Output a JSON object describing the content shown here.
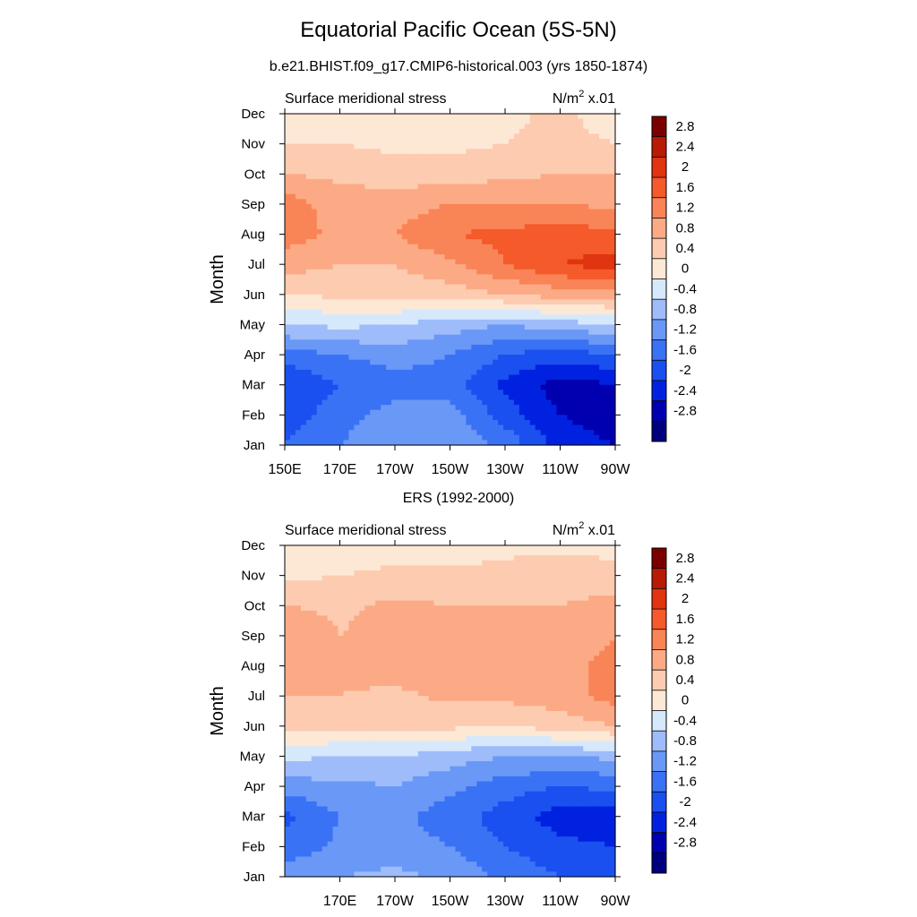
{
  "figure": {
    "title": "Equatorial Pacific Ocean (5S-5N)",
    "subtitle": "b.e21.BHIST.f09_g17.CMIP6-historical.003 (yrs 1850-1874)",
    "panel2_title": "ERS (1992-2000)"
  },
  "chart_data": [
    {
      "type": "heatmap",
      "title": "b.e21.BHIST.f09_g17.CMIP6-historical.003 (yrs 1850-1874)",
      "left_label": "Surface meridional stress",
      "right_label_base": "N/m",
      "right_label_exp": "2",
      "right_label_tail": " x.01",
      "ylabel": "Month",
      "xlabel": "",
      "x_ticks": [
        "150E",
        "170E",
        "170W",
        "150W",
        "130W",
        "110W",
        "90W"
      ],
      "y_ticks": [
        "Jan",
        "Feb",
        "Mar",
        "Apr",
        "May",
        "Jun",
        "Jul",
        "Aug",
        "Sep",
        "Oct",
        "Nov",
        "Dec"
      ],
      "x_range": [
        150,
        270
      ],
      "columns_lon": [
        150,
        170,
        190,
        210,
        230,
        250,
        270
      ],
      "rows": [
        [
          -1.6,
          -1.2,
          -0.8,
          -0.9,
          -1.3,
          -2.2,
          -2.4
        ],
        [
          -1.8,
          -1.4,
          -1.0,
          -1.0,
          -1.8,
          -2.4,
          -2.6
        ],
        [
          -2.0,
          -1.6,
          -1.4,
          -1.4,
          -2.1,
          -2.6,
          -2.4
        ],
        [
          -1.4,
          -1.2,
          -1.0,
          -1.2,
          -1.6,
          -1.8,
          -1.6
        ],
        [
          -0.4,
          -0.3,
          -0.4,
          -0.6,
          -0.8,
          -0.6,
          -0.4
        ],
        [
          0.4,
          0.5,
          0.6,
          0.6,
          0.8,
          1.0,
          1.0
        ],
        [
          1.0,
          0.8,
          0.8,
          1.1,
          1.6,
          2.0,
          2.2
        ],
        [
          1.4,
          1.1,
          1.2,
          1.6,
          1.7,
          1.8,
          1.7
        ],
        [
          1.4,
          1.0,
          1.0,
          1.2,
          1.2,
          1.2,
          1.1
        ],
        [
          0.8,
          0.7,
          0.6,
          0.6,
          0.7,
          0.8,
          0.8
        ],
        [
          0.4,
          0.4,
          0.3,
          0.3,
          0.4,
          0.5,
          0.4
        ],
        [
          0.1,
          0.2,
          0.2,
          0.2,
          0.3,
          0.5,
          0.2
        ]
      ],
      "levels": [
        -2.8,
        -2.4,
        -2,
        -1.6,
        -1.2,
        -0.8,
        -0.4,
        0,
        0.4,
        0.8,
        1.2,
        1.6,
        2,
        2.4,
        2.8
      ],
      "colorbar_labels": [
        "2.8",
        "2.4",
        "2",
        "1.6",
        "1.2",
        "0.8",
        "0.4",
        "0",
        "-0.4",
        "-0.8",
        "-1.2",
        "-1.6",
        "-2",
        "-2.4",
        "-2.8"
      ],
      "colors": [
        "#00007f",
        "#0000b0",
        "#0022e0",
        "#1a50f0",
        "#3a72f5",
        "#6a98f7",
        "#9ebcfa",
        "#d6e8fc",
        "#fde8d6",
        "#fdcbb0",
        "#fcaa86",
        "#f98457",
        "#f55a2a",
        "#e03510",
        "#b81a05",
        "#7a0000"
      ]
    },
    {
      "type": "heatmap",
      "title": "ERS (1992-2000)",
      "left_label": "Surface meridional stress",
      "right_label_base": "N/m",
      "right_label_exp": "2",
      "right_label_tail": " x.01",
      "ylabel": "Month",
      "xlabel": "",
      "x_ticks": [
        "170E",
        "170W",
        "150W",
        "130W",
        "110W",
        "90W"
      ],
      "y_ticks": [
        "Jan",
        "Feb",
        "Mar",
        "Apr",
        "May",
        "Jun",
        "Jul",
        "Aug",
        "Sep",
        "Oct",
        "Nov",
        "Dec"
      ],
      "x_range": [
        150,
        270
      ],
      "columns_lon": [
        150,
        170,
        190,
        210,
        230,
        250,
        270
      ],
      "rows": [
        [
          -0.9,
          -0.8,
          -0.7,
          -0.9,
          -1.3,
          -1.6,
          -1.8
        ],
        [
          -1.5,
          -1.1,
          -1.0,
          -1.2,
          -1.6,
          -1.9,
          -2.0
        ],
        [
          -1.7,
          -1.2,
          -1.1,
          -1.4,
          -1.8,
          -2.2,
          -2.2
        ],
        [
          -1.0,
          -0.9,
          -0.8,
          -1.1,
          -1.4,
          -1.6,
          -1.5
        ],
        [
          -0.3,
          -0.4,
          -0.4,
          -0.6,
          -0.8,
          -0.8,
          -0.7
        ],
        [
          0.6,
          0.5,
          0.5,
          0.5,
          0.4,
          0.6,
          0.8
        ],
        [
          0.8,
          0.8,
          0.7,
          0.9,
          0.9,
          1.0,
          1.4
        ],
        [
          0.9,
          0.9,
          1.0,
          1.0,
          1.0,
          1.1,
          1.3
        ],
        [
          1.2,
          0.8,
          1.0,
          1.0,
          1.0,
          1.0,
          1.2
        ],
        [
          0.8,
          0.7,
          0.9,
          0.8,
          0.8,
          0.8,
          0.9
        ],
        [
          0.3,
          0.4,
          0.5,
          0.5,
          0.5,
          0.7,
          0.6
        ],
        [
          0.1,
          0.1,
          0.2,
          0.2,
          0.3,
          0.3,
          0.2
        ]
      ],
      "levels": [
        -2.8,
        -2.4,
        -2,
        -1.6,
        -1.2,
        -0.8,
        -0.4,
        0,
        0.4,
        0.8,
        1.2,
        1.6,
        2,
        2.4,
        2.8
      ],
      "colorbar_labels": [
        "2.8",
        "2.4",
        "2",
        "1.6",
        "1.2",
        "0.8",
        "0.4",
        "0",
        "-0.4",
        "-0.8",
        "-1.2",
        "-1.6",
        "-2",
        "-2.4",
        "-2.8"
      ],
      "colors": [
        "#00007f",
        "#0000b0",
        "#0022e0",
        "#1a50f0",
        "#3a72f5",
        "#6a98f7",
        "#9ebcfa",
        "#d6e8fc",
        "#fde8d6",
        "#fdcbb0",
        "#fcaa86",
        "#f98457",
        "#f55a2a",
        "#e03510",
        "#b81a05",
        "#7a0000"
      ]
    }
  ]
}
